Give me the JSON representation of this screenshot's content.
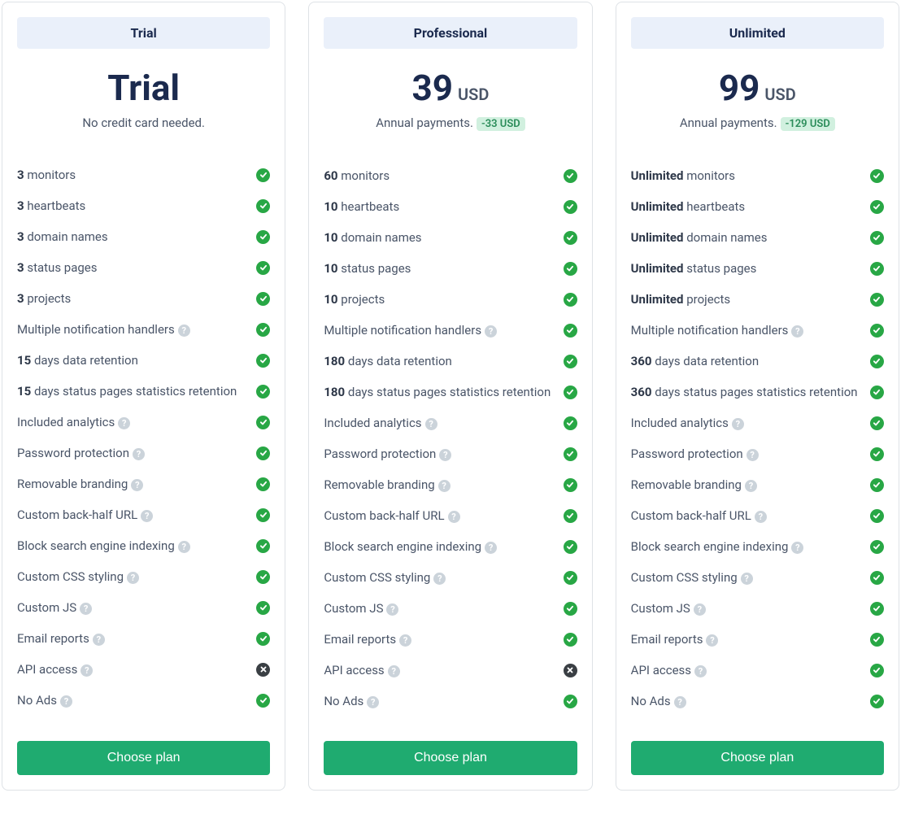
{
  "colors": {
    "card_border": "#dee2e6",
    "header_bg": "#eaf0fa",
    "header_text": "#1b2a4e",
    "price_text": "#1b2a4e",
    "body_text": "#4a5568",
    "bold_text": "#2d3748",
    "savings_bg": "#d1f0df",
    "savings_text": "#2a8c59",
    "help_bg": "#cbd3da",
    "check_bg": "#28a745",
    "x_bg": "#3a3f44",
    "button_bg": "#1fab70",
    "button_text": "#ffffff"
  },
  "common": {
    "choose_label": "Choose plan",
    "currency": "USD",
    "annual_text": "Annual payments."
  },
  "plans": [
    {
      "id": "trial",
      "name": "Trial",
      "price_display": "Trial",
      "show_currency": false,
      "subline": "No credit card needed.",
      "savings": null,
      "features": [
        {
          "bold": "3",
          "text": "monitors",
          "help": false,
          "included": true
        },
        {
          "bold": "3",
          "text": "heartbeats",
          "help": false,
          "included": true
        },
        {
          "bold": "3",
          "text": "domain names",
          "help": false,
          "included": true
        },
        {
          "bold": "3",
          "text": "status pages",
          "help": false,
          "included": true
        },
        {
          "bold": "3",
          "text": "projects",
          "help": false,
          "included": true
        },
        {
          "bold": null,
          "text": "Multiple notification handlers",
          "help": true,
          "included": true
        },
        {
          "bold": "15",
          "text": "days data retention",
          "help": false,
          "included": true
        },
        {
          "bold": "15",
          "text": "days status pages statistics retention",
          "help": false,
          "included": true
        },
        {
          "bold": null,
          "text": "Included analytics",
          "help": true,
          "included": true
        },
        {
          "bold": null,
          "text": "Password protection",
          "help": true,
          "included": true
        },
        {
          "bold": null,
          "text": "Removable branding",
          "help": true,
          "included": true
        },
        {
          "bold": null,
          "text": "Custom back-half URL",
          "help": true,
          "included": true
        },
        {
          "bold": null,
          "text": "Block search engine indexing",
          "help": true,
          "included": true
        },
        {
          "bold": null,
          "text": "Custom CSS styling",
          "help": true,
          "included": true
        },
        {
          "bold": null,
          "text": "Custom JS",
          "help": true,
          "included": true
        },
        {
          "bold": null,
          "text": "Email reports",
          "help": true,
          "included": true
        },
        {
          "bold": null,
          "text": "API access",
          "help": true,
          "included": false
        },
        {
          "bold": null,
          "text": "No Ads",
          "help": true,
          "included": true
        }
      ]
    },
    {
      "id": "professional",
      "name": "Professional",
      "price_display": "39",
      "show_currency": true,
      "subline": "Annual payments.",
      "savings": "-33 USD",
      "features": [
        {
          "bold": "60",
          "text": "monitors",
          "help": false,
          "included": true
        },
        {
          "bold": "10",
          "text": "heartbeats",
          "help": false,
          "included": true
        },
        {
          "bold": "10",
          "text": "domain names",
          "help": false,
          "included": true
        },
        {
          "bold": "10",
          "text": "status pages",
          "help": false,
          "included": true
        },
        {
          "bold": "10",
          "text": "projects",
          "help": false,
          "included": true
        },
        {
          "bold": null,
          "text": "Multiple notification handlers",
          "help": true,
          "included": true
        },
        {
          "bold": "180",
          "text": "days data retention",
          "help": false,
          "included": true
        },
        {
          "bold": "180",
          "text": "days status pages statistics retention",
          "help": false,
          "included": true
        },
        {
          "bold": null,
          "text": "Included analytics",
          "help": true,
          "included": true
        },
        {
          "bold": null,
          "text": "Password protection",
          "help": true,
          "included": true
        },
        {
          "bold": null,
          "text": "Removable branding",
          "help": true,
          "included": true
        },
        {
          "bold": null,
          "text": "Custom back-half URL",
          "help": true,
          "included": true
        },
        {
          "bold": null,
          "text": "Block search engine indexing",
          "help": true,
          "included": true
        },
        {
          "bold": null,
          "text": "Custom CSS styling",
          "help": true,
          "included": true
        },
        {
          "bold": null,
          "text": "Custom JS",
          "help": true,
          "included": true
        },
        {
          "bold": null,
          "text": "Email reports",
          "help": true,
          "included": true
        },
        {
          "bold": null,
          "text": "API access",
          "help": true,
          "included": false
        },
        {
          "bold": null,
          "text": "No Ads",
          "help": true,
          "included": true
        }
      ]
    },
    {
      "id": "unlimited",
      "name": "Unlimited",
      "price_display": "99",
      "show_currency": true,
      "subline": "Annual payments.",
      "savings": "-129 USD",
      "features": [
        {
          "bold": "Unlimited",
          "text": "monitors",
          "help": false,
          "included": true
        },
        {
          "bold": "Unlimited",
          "text": "heartbeats",
          "help": false,
          "included": true
        },
        {
          "bold": "Unlimited",
          "text": "domain names",
          "help": false,
          "included": true
        },
        {
          "bold": "Unlimited",
          "text": "status pages",
          "help": false,
          "included": true
        },
        {
          "bold": "Unlimited",
          "text": "projects",
          "help": false,
          "included": true
        },
        {
          "bold": null,
          "text": "Multiple notification handlers",
          "help": true,
          "included": true
        },
        {
          "bold": "360",
          "text": "days data retention",
          "help": false,
          "included": true
        },
        {
          "bold": "360",
          "text": "days status pages statistics retention",
          "help": false,
          "included": true
        },
        {
          "bold": null,
          "text": "Included analytics",
          "help": true,
          "included": true
        },
        {
          "bold": null,
          "text": "Password protection",
          "help": true,
          "included": true
        },
        {
          "bold": null,
          "text": "Removable branding",
          "help": true,
          "included": true
        },
        {
          "bold": null,
          "text": "Custom back-half URL",
          "help": true,
          "included": true
        },
        {
          "bold": null,
          "text": "Block search engine indexing",
          "help": true,
          "included": true
        },
        {
          "bold": null,
          "text": "Custom CSS styling",
          "help": true,
          "included": true
        },
        {
          "bold": null,
          "text": "Custom JS",
          "help": true,
          "included": true
        },
        {
          "bold": null,
          "text": "Email reports",
          "help": true,
          "included": true
        },
        {
          "bold": null,
          "text": "API access",
          "help": true,
          "included": true
        },
        {
          "bold": null,
          "text": "No Ads",
          "help": true,
          "included": true
        }
      ]
    }
  ]
}
